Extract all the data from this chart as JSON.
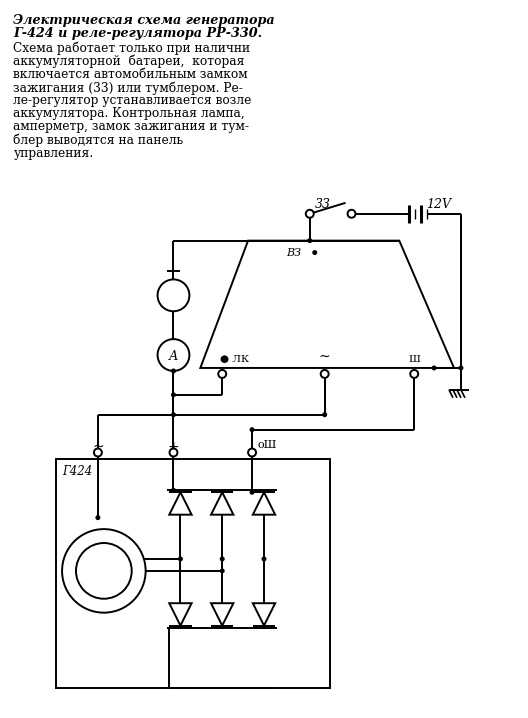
{
  "bg_color": "#ffffff",
  "line_color": "#000000",
  "font_color": "#000000",
  "title_line1": "Электрическая схема генератора",
  "title_line2": "Г-424 и реле-регулятора РР-330.",
  "body_lines": [
    "Схема работает только при налични",
    "аккумуляторной  батареи,  которая",
    "включается автомобильным замком",
    "зажигания (33) или тумблером. Ре-",
    "ле-регулятор устанавливается возле",
    "аккумулятора. Контрольная лампа,",
    "амперметр, замок зажигания и тум-",
    "блер выводятся на панель",
    "управления."
  ]
}
